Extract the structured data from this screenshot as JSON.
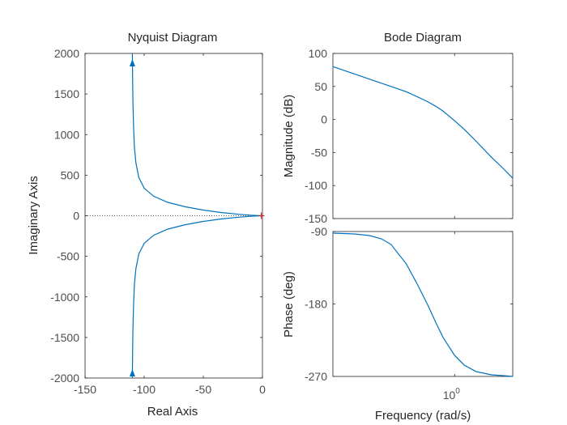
{
  "figure": {
    "background": "#ffffff",
    "line_color": "#0072bd",
    "critical_point_color": "#d62728"
  },
  "chart_data": [
    {
      "type": "line",
      "title": "Nyquist Diagram",
      "xlabel": "Real Axis",
      "ylabel": "Imaginary Axis",
      "xlim": [
        -150,
        0
      ],
      "ylim": [
        -2000,
        2000
      ],
      "xticks": [
        -150,
        -100,
        -50,
        0
      ],
      "xtick_labels": [
        "-150",
        "-100",
        "-50",
        "0"
      ],
      "yticks": [
        2000,
        1500,
        1000,
        500,
        0,
        -500,
        -1000,
        -1500,
        -2000
      ],
      "ytick_labels": [
        "2000",
        "1500",
        "1000",
        "500",
        "0",
        "-500",
        "-1000",
        "-1500",
        "-2000"
      ],
      "zero_line": "dotted",
      "critical_point": {
        "x": -1,
        "y": 0,
        "marker": "+"
      },
      "series": [
        {
          "branch": "positive-frequency",
          "x": [
            -110.0,
            -109.8,
            -109.5,
            -109.0,
            -108.3,
            -107.0,
            -104.5,
            -100.0,
            -92.0,
            -80.0,
            -65.0,
            -50.0,
            -35.0,
            -20.0,
            -10.0,
            -3.0,
            0.0
          ],
          "y": [
            -2000,
            -1700,
            -1400,
            -1100,
            -850,
            -650,
            -470,
            -340,
            -240,
            -165,
            -110,
            -70,
            -40,
            -18,
            -7,
            -2,
            0
          ]
        },
        {
          "branch": "negative-frequency",
          "x": [
            -110.0,
            -109.8,
            -109.5,
            -109.0,
            -108.3,
            -107.0,
            -104.5,
            -100.0,
            -92.0,
            -80.0,
            -65.0,
            -50.0,
            -35.0,
            -20.0,
            -10.0,
            -3.0,
            0.0
          ],
          "y": [
            2000,
            1700,
            1400,
            1100,
            850,
            650,
            470,
            340,
            240,
            165,
            110,
            70,
            40,
            18,
            7,
            2,
            0
          ]
        }
      ],
      "arrows": [
        {
          "x": -110.0,
          "y": 1880,
          "direction": "up"
        },
        {
          "x": -110.0,
          "y": -1940,
          "direction": "up"
        }
      ]
    },
    {
      "type": "line",
      "title": "Bode Diagram",
      "ylabel": "Magnitude (dB)",
      "x_scale": "log",
      "xlim": [
        0.1,
        3.0
      ],
      "ylim": [
        -150,
        100
      ],
      "yticks": [
        100,
        50,
        0,
        -50,
        -100,
        -150
      ],
      "ytick_labels": [
        "100",
        "50",
        "0",
        "-50",
        "-100",
        "-150"
      ],
      "series": [
        {
          "x": [
            0.1,
            0.15,
            0.2,
            0.3,
            0.4,
            0.5,
            0.6,
            0.7,
            0.8,
            1.0,
            1.2,
            1.5,
            2.0,
            2.5,
            3.0
          ],
          "y": [
            80,
            69,
            61,
            50,
            42,
            34,
            27,
            20,
            13,
            -2,
            -15,
            -33,
            -57,
            -74,
            -89
          ]
        }
      ]
    },
    {
      "type": "line",
      "xlabel": "Frequency  (rad/s)",
      "ylabel": "Phase (deg)",
      "x_scale": "log",
      "xlim": [
        0.1,
        3.0
      ],
      "ylim": [
        -270,
        -90
      ],
      "xticks": [
        1
      ],
      "xtick_labels_base": "10",
      "xtick_labels_exp": "0",
      "yticks": [
        -90,
        -180,
        -270
      ],
      "ytick_labels": [
        "-90",
        "-180",
        "-270"
      ],
      "series": [
        {
          "x": [
            0.1,
            0.15,
            0.2,
            0.25,
            0.3,
            0.4,
            0.5,
            0.6,
            0.7,
            0.8,
            1.0,
            1.2,
            1.5,
            2.0,
            2.5,
            3.0
          ],
          "y": [
            -92,
            -93,
            -95,
            -99,
            -106,
            -130,
            -157,
            -181,
            -203,
            -221,
            -244,
            -256,
            -264,
            -268,
            -269,
            -270
          ]
        }
      ]
    }
  ]
}
